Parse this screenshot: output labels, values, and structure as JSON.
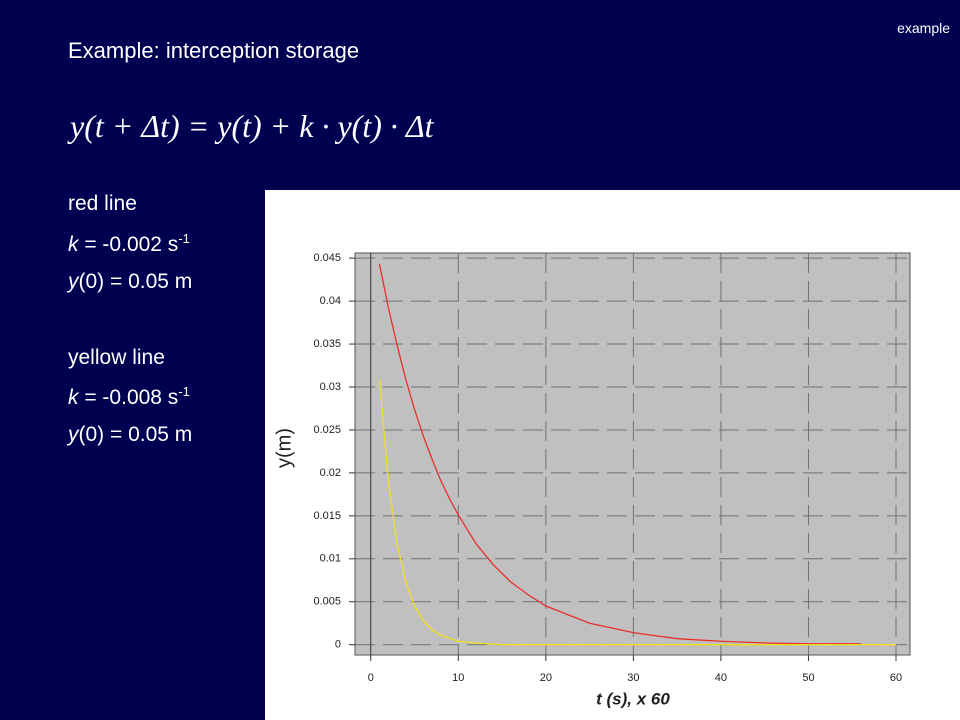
{
  "corner_label": "example",
  "title": "Example: interception storage",
  "equation": "y(t + Δt) = y(t) + k · y(t) · Δt",
  "red_line": {
    "heading": "red line",
    "k_parts": [
      "k",
      " = -0.002 s",
      "-1"
    ],
    "y0_parts": [
      "y",
      "(0) = 0.05 m"
    ]
  },
  "yellow_line": {
    "heading": "yellow line",
    "k_parts": [
      "k",
      " = -0.008 s",
      "-1"
    ],
    "y0_parts": [
      "y",
      "(0) = 0.05 m"
    ]
  },
  "chart_data": {
    "type": "line",
    "xlabel": "t (s), x 60",
    "ylabel": "y(m)",
    "xlim": [
      -1.8,
      61.6
    ],
    "ylim": [
      -0.0012,
      0.0456
    ],
    "xticks": [
      0,
      10,
      20,
      30,
      40,
      50,
      60
    ],
    "yticks": [
      0,
      0.005,
      0.01,
      0.015,
      0.02,
      0.025,
      0.03,
      0.035,
      0.04,
      0.045
    ],
    "grid": true,
    "series": [
      {
        "color": "#e8302a",
        "x": [
          1,
          2,
          3,
          4,
          5,
          6,
          7,
          8,
          9,
          10,
          12,
          14,
          16,
          18,
          20,
          25,
          30,
          35,
          40,
          45,
          50,
          56
        ],
        "values": [
          0.0443,
          0.0393,
          0.0349,
          0.0309,
          0.0274,
          0.0243,
          0.0216,
          0.0191,
          0.017,
          0.0151,
          0.0118,
          0.0093,
          0.0073,
          0.0058,
          0.0045,
          0.0025,
          0.0014,
          0.0007,
          0.0004,
          0.0002,
          0.0001,
          0.0001
        ]
      },
      {
        "color": "#f0e020",
        "x": [
          1,
          2,
          3,
          4,
          5,
          6,
          7,
          8,
          10,
          12,
          15,
          20,
          30,
          40,
          50,
          60
        ],
        "values": [
          0.0309,
          0.0191,
          0.0118,
          0.0073,
          0.0045,
          0.0028,
          0.0017,
          0.0011,
          0.0004,
          0.0002,
          0,
          0,
          0,
          0,
          0,
          0
        ]
      }
    ]
  }
}
